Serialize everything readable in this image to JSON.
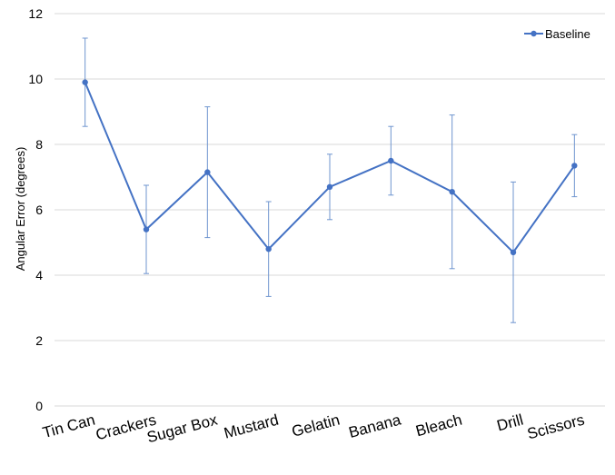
{
  "chart_data": {
    "type": "line",
    "title": "",
    "xlabel": "",
    "ylabel": "Angular Error (degrees)",
    "ylim": [
      0,
      12
    ],
    "yticks": [
      0,
      2,
      4,
      6,
      8,
      10,
      12
    ],
    "grid": true,
    "legend_position": "top-right",
    "categories": [
      "Tin Can",
      "Crackers",
      "Sugar Box",
      "Mustard",
      "Gelatin",
      "Banana",
      "Bleach",
      "Drill",
      "Scissors"
    ],
    "series": [
      {
        "name": "Baseline",
        "color": "#4472c4",
        "values": [
          9.9,
          5.4,
          7.15,
          4.8,
          6.7,
          7.5,
          6.55,
          4.7,
          7.35
        ],
        "error": [
          1.35,
          1.35,
          2.0,
          1.45,
          1.0,
          1.05,
          2.35,
          2.15,
          0.95
        ]
      }
    ]
  }
}
